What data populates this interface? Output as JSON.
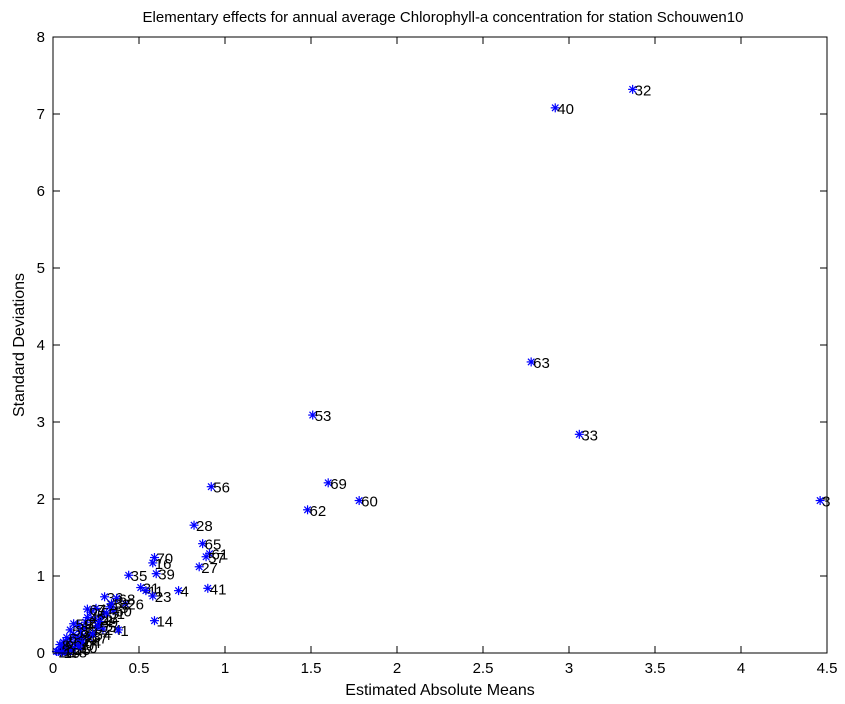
{
  "chart_data": {
    "type": "scatter",
    "title": "Elementary effects for annual average Chlorophyll-a concentration for station Schouwen10",
    "xlabel": "Estimated Absolute Means",
    "ylabel": "Standard Deviations",
    "xlim": [
      0,
      4.5
    ],
    "ylim": [
      0,
      8
    ],
    "x_ticks": [
      "0",
      "0.5",
      "1",
      "1.5",
      "2",
      "2.5",
      "3",
      "3.5",
      "4",
      "4.5"
    ],
    "y_ticks": [
      "0",
      "1",
      "2",
      "3",
      "4",
      "5",
      "6",
      "7",
      "8"
    ],
    "grid": false,
    "marker": "asterisk",
    "marker_color": "#0000ff",
    "points": [
      {
        "label": "32",
        "x": 3.37,
        "y": 7.32
      },
      {
        "label": "40",
        "x": 2.92,
        "y": 7.08
      },
      {
        "label": "63",
        "x": 2.78,
        "y": 3.78
      },
      {
        "label": "33",
        "x": 3.06,
        "y": 2.84
      },
      {
        "label": "3",
        "x": 4.46,
        "y": 1.98
      },
      {
        "label": "53",
        "x": 1.51,
        "y": 3.09
      },
      {
        "label": "69",
        "x": 1.6,
        "y": 2.21
      },
      {
        "label": "60",
        "x": 1.78,
        "y": 1.98
      },
      {
        "label": "62",
        "x": 1.48,
        "y": 1.86
      },
      {
        "label": "56",
        "x": 0.92,
        "y": 2.16
      },
      {
        "label": "28",
        "x": 0.82,
        "y": 1.66
      },
      {
        "label": "65",
        "x": 0.87,
        "y": 1.42
      },
      {
        "label": "61",
        "x": 0.91,
        "y": 1.29
      },
      {
        "label": "57",
        "x": 0.89,
        "y": 1.25
      },
      {
        "label": "27",
        "x": 0.85,
        "y": 1.12
      },
      {
        "label": "70",
        "x": 0.59,
        "y": 1.24
      },
      {
        "label": "16",
        "x": 0.58,
        "y": 1.17
      },
      {
        "label": "39",
        "x": 0.6,
        "y": 1.03
      },
      {
        "label": "35",
        "x": 0.44,
        "y": 1.01
      },
      {
        "label": "41",
        "x": 0.9,
        "y": 0.84
      },
      {
        "label": "4",
        "x": 0.73,
        "y": 0.81
      },
      {
        "label": "31",
        "x": 0.51,
        "y": 0.85
      },
      {
        "label": "11",
        "x": 0.54,
        "y": 0.81
      },
      {
        "label": "23",
        "x": 0.58,
        "y": 0.74
      },
      {
        "label": "26",
        "x": 0.42,
        "y": 0.64
      },
      {
        "label": "14",
        "x": 0.59,
        "y": 0.42
      },
      {
        "label": "36",
        "x": 0.3,
        "y": 0.73
      },
      {
        "label": "68",
        "x": 0.37,
        "y": 0.71
      },
      {
        "label": "15",
        "x": 0.33,
        "y": 0.6
      },
      {
        "label": "50",
        "x": 0.35,
        "y": 0.55
      },
      {
        "label": "12",
        "x": 0.28,
        "y": 0.48
      },
      {
        "label": "22",
        "x": 0.24,
        "y": 0.44
      },
      {
        "label": "21",
        "x": 0.19,
        "y": 0.4
      },
      {
        "label": "43",
        "x": 0.15,
        "y": 0.36
      },
      {
        "label": "24",
        "x": 0.29,
        "y": 0.31
      },
      {
        "label": "1",
        "x": 0.38,
        "y": 0.3
      },
      {
        "label": "13",
        "x": 0.17,
        "y": 0.22
      },
      {
        "label": "17",
        "x": 0.21,
        "y": 0.2
      },
      {
        "label": "48",
        "x": 0.12,
        "y": 0.24
      },
      {
        "label": "46",
        "x": 0.1,
        "y": 0.17
      },
      {
        "label": "44",
        "x": 0.08,
        "y": 0.1
      },
      {
        "label": "20",
        "x": 0.06,
        "y": 0.05
      },
      {
        "label": "9",
        "x": 0.05,
        "y": 0.08
      },
      {
        "label": "5",
        "x": 0.04,
        "y": 0.04
      },
      {
        "label": "2",
        "x": 0.03,
        "y": 0.02
      },
      {
        "label": "7",
        "x": 0.07,
        "y": 0.03
      },
      {
        "label": "18",
        "x": 0.09,
        "y": 0.02
      },
      {
        "label": "25",
        "x": 0.11,
        "y": 0.05
      },
      {
        "label": "29",
        "x": 0.02,
        "y": 0.02
      },
      {
        "label": "30",
        "x": 0.13,
        "y": 0.11
      },
      {
        "label": "34",
        "x": 0.14,
        "y": 0.19
      },
      {
        "label": "37",
        "x": 0.16,
        "y": 0.28
      },
      {
        "label": "38",
        "x": 0.18,
        "y": 0.33
      },
      {
        "label": "42",
        "x": 0.2,
        "y": 0.46
      },
      {
        "label": "45",
        "x": 0.22,
        "y": 0.53
      },
      {
        "label": "47",
        "x": 0.25,
        "y": 0.58
      },
      {
        "label": "49",
        "x": 0.27,
        "y": 0.41
      },
      {
        "label": "51",
        "x": 0.31,
        "y": 0.52
      },
      {
        "label": "52",
        "x": 0.34,
        "y": 0.64
      },
      {
        "label": "54",
        "x": 0.23,
        "y": 0.25
      },
      {
        "label": "55",
        "x": 0.26,
        "y": 0.35
      },
      {
        "label": "58",
        "x": 0.1,
        "y": 0.3
      },
      {
        "label": "59",
        "x": 0.12,
        "y": 0.38
      },
      {
        "label": "64",
        "x": 0.17,
        "y": 0.14
      },
      {
        "label": "66",
        "x": 0.06,
        "y": 0.14
      },
      {
        "label": "67",
        "x": 0.2,
        "y": 0.57
      },
      {
        "label": "6",
        "x": 0.08,
        "y": 0.2
      },
      {
        "label": "8",
        "x": 0.04,
        "y": 0.11
      },
      {
        "label": "10",
        "x": 0.15,
        "y": 0.08
      },
      {
        "label": "19",
        "x": 0.05,
        "y": 0.01
      }
    ]
  }
}
